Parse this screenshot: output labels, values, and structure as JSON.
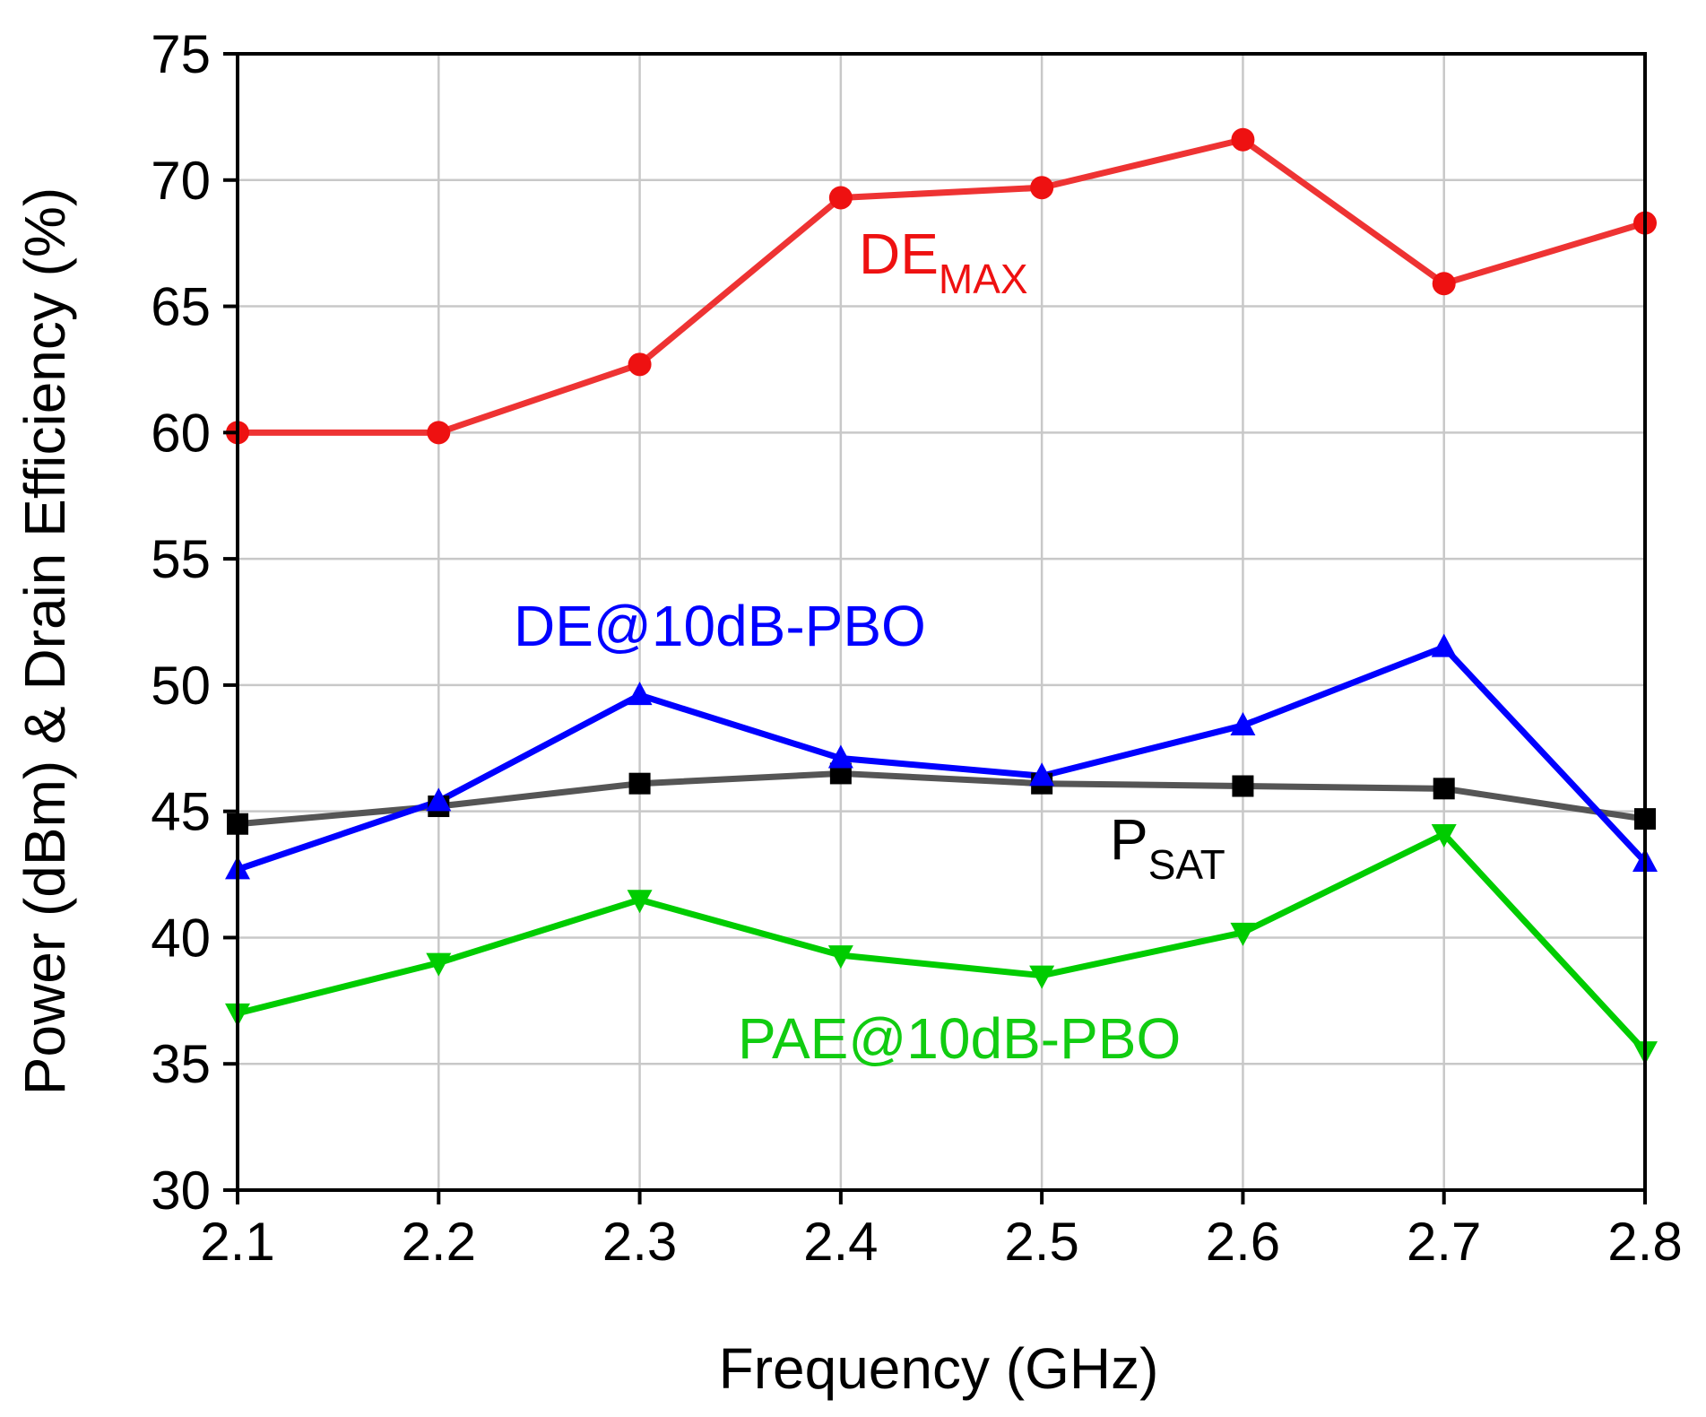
{
  "chart_data": {
    "type": "line",
    "title": "",
    "xlabel": "Frequency (GHz)",
    "ylabel": "Power (dBm) & Drain Efficiency (%)",
    "xlim": [
      2.1,
      2.8
    ],
    "ylim": [
      30,
      75
    ],
    "xticks": [
      "2.1",
      "2.2",
      "2.3",
      "2.4",
      "2.5",
      "2.6",
      "2.7",
      "2.8"
    ],
    "yticks": [
      "30",
      "35",
      "40",
      "45",
      "50",
      "55",
      "60",
      "65",
      "70",
      "75"
    ],
    "grid": true,
    "x": [
      2.1,
      2.2,
      2.3,
      2.4,
      2.5,
      2.6,
      2.7,
      2.8
    ],
    "series": [
      {
        "name": "PSAT",
        "label_main": "P",
        "label_sub": "SAT",
        "color": "#555555",
        "marker": "square",
        "marker_color": "#000000",
        "values": [
          44.5,
          45.2,
          46.1,
          46.5,
          46.1,
          46.0,
          45.9,
          44.7
        ]
      },
      {
        "name": "DE@10dB-PBO",
        "label_main": "DE@10dB-PBO",
        "label_sub": "",
        "color": "#0000ff",
        "marker": "triangle-up",
        "marker_color": "#0000ff",
        "values": [
          42.7,
          45.4,
          49.6,
          47.1,
          46.4,
          48.4,
          51.5,
          43.0
        ]
      },
      {
        "name": "PAE@10dB-PBO",
        "label_main": "PAE@10dB-PBO",
        "label_sub": "",
        "color": "#00cc00",
        "marker": "triangle-down",
        "marker_color": "#00cc00",
        "values": [
          37.0,
          39.0,
          41.5,
          39.3,
          38.5,
          40.2,
          44.1,
          35.5
        ]
      },
      {
        "name": "DEMAX",
        "label_main": "DE",
        "label_sub": "MAX",
        "color": "#ee3333",
        "marker": "circle",
        "marker_color": "#ee1111",
        "values": [
          60.0,
          60.0,
          62.7,
          69.3,
          69.7,
          71.6,
          65.9,
          68.3
        ]
      }
    ]
  }
}
